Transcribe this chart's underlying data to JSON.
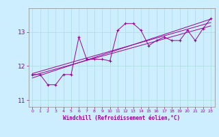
{
  "xlabel": "Windchill (Refroidissement éolien,°C)",
  "bg_color": "#cceeff",
  "line_color": "#990099",
  "x_data": [
    0,
    1,
    2,
    3,
    4,
    5,
    6,
    7,
    8,
    9,
    10,
    11,
    12,
    13,
    14,
    15,
    16,
    17,
    18,
    19,
    20,
    21,
    22,
    23
  ],
  "y_data": [
    11.75,
    11.75,
    11.45,
    11.45,
    11.75,
    11.75,
    12.85,
    12.2,
    12.2,
    12.2,
    12.15,
    13.05,
    13.25,
    13.25,
    13.05,
    12.6,
    12.75,
    12.85,
    12.75,
    12.75,
    13.05,
    12.75,
    13.1,
    13.4
  ],
  "ylim": [
    10.8,
    13.7
  ],
  "xlim": [
    -0.5,
    23.5
  ],
  "yticks": [
    11,
    12,
    13
  ],
  "xticks": [
    0,
    1,
    2,
    3,
    4,
    5,
    6,
    7,
    8,
    9,
    10,
    11,
    12,
    13,
    14,
    15,
    16,
    17,
    18,
    19,
    20,
    21,
    22,
    23
  ],
  "regression_lines": [
    {
      "x0": 0,
      "y0": 11.72,
      "x1": 23,
      "y1": 13.18
    },
    {
      "x0": 0,
      "y0": 11.78,
      "x1": 23,
      "y1": 13.28
    },
    {
      "x0": 0,
      "y0": 11.65,
      "x1": 23,
      "y1": 13.38
    }
  ],
  "grid_color": "#aadddd",
  "spine_color": "#888888"
}
